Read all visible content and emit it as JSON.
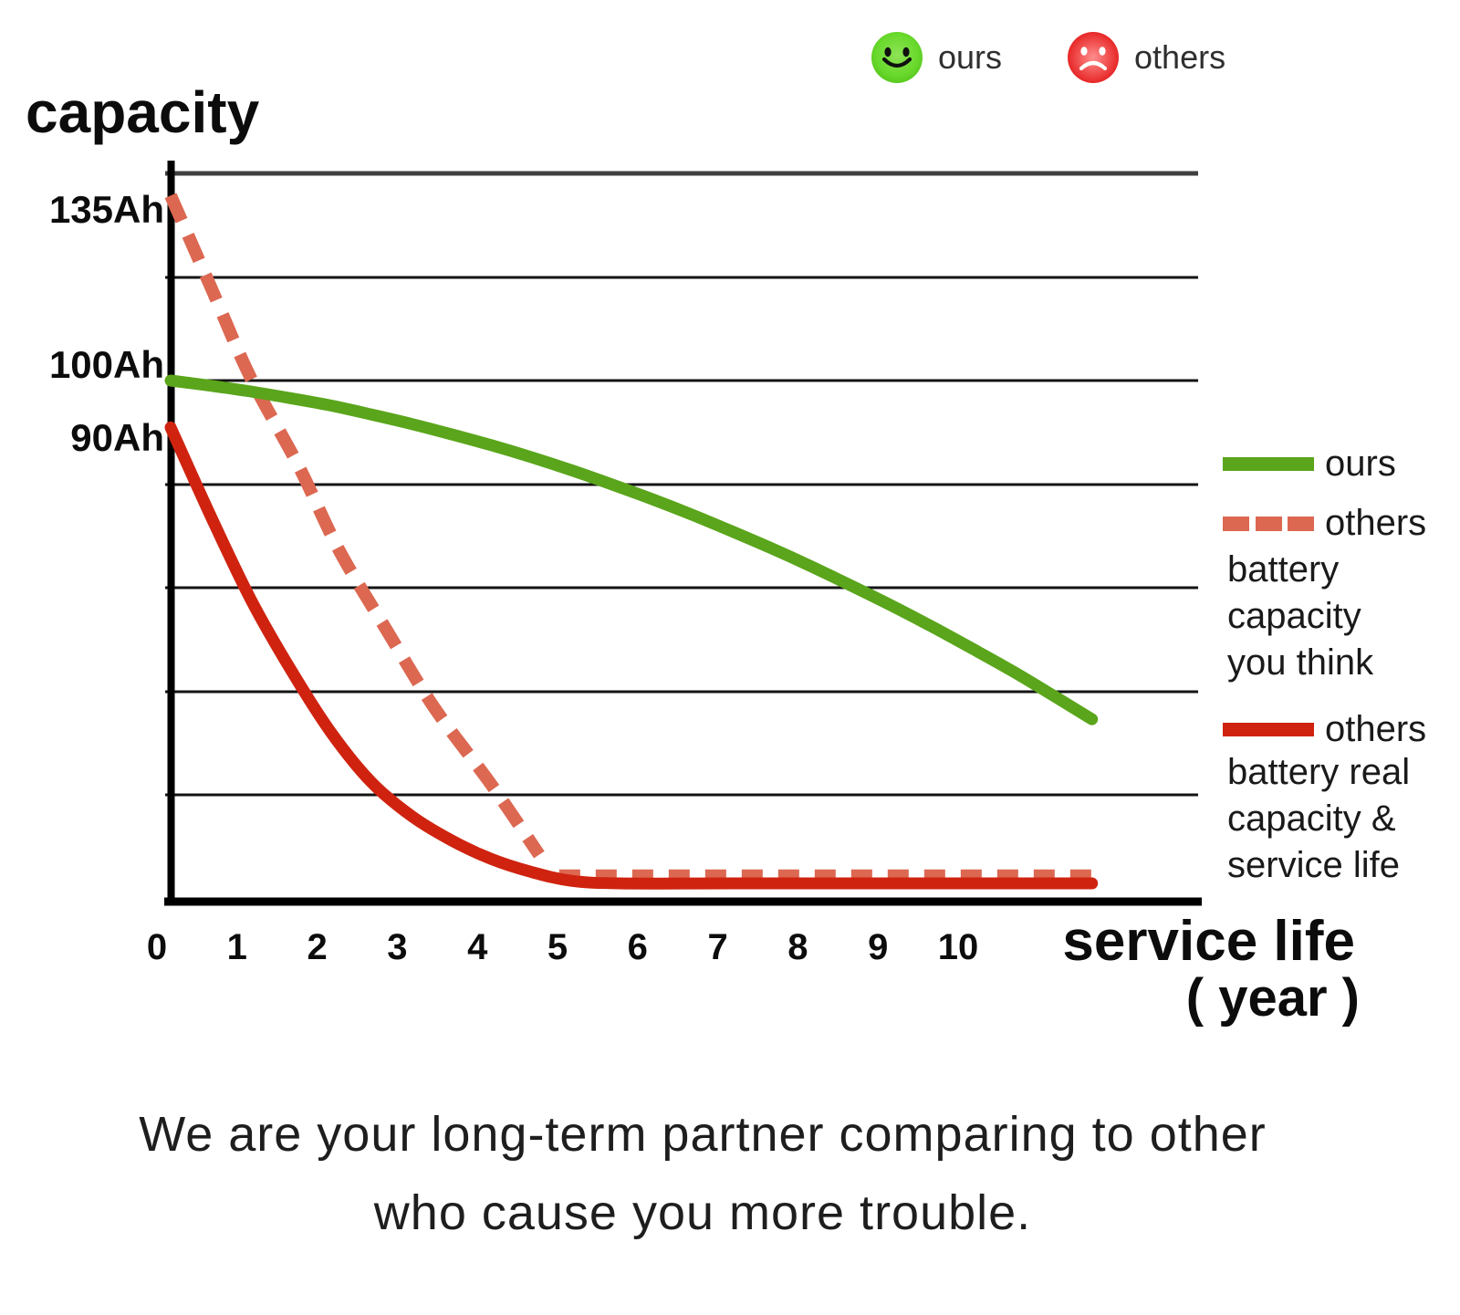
{
  "title": "capacity",
  "top_legend": [
    {
      "icon": "happy-face",
      "label": "ours"
    },
    {
      "icon": "sad-face",
      "label": "others"
    }
  ],
  "y_axis": {
    "labels": [
      "135Ah",
      "100Ah",
      "90Ah"
    ]
  },
  "x_axis": {
    "ticks": [
      "0",
      "1",
      "2",
      "3",
      "4",
      "5",
      "6",
      "7",
      "8",
      "9",
      "10"
    ],
    "title_line1": "service life",
    "title_line2": "( year )"
  },
  "side_legend": [
    {
      "swatch": "green-solid",
      "label": "ours",
      "sublines": []
    },
    {
      "swatch": "salmon-dashed",
      "label": "others",
      "sublines": [
        "battery",
        "capacity",
        "you think"
      ]
    },
    {
      "swatch": "red-solid",
      "label": "others",
      "sublines": [
        "battery real",
        "capacity &",
        "service life"
      ]
    }
  ],
  "caption": {
    "line1": "We are your long-term partner comparing to other",
    "line2": "who cause you more trouble."
  },
  "colors": {
    "ours_green": "#5aa51b",
    "others_salmon": "#dc6852",
    "others_red": "#cf2310",
    "grid": "#141414",
    "grid_top": "#3f3f3f",
    "axis": "#000000"
  },
  "chart_data": {
    "type": "line",
    "title": "capacity",
    "xlabel": "service life ( year )",
    "ylabel": "capacity",
    "x_ticks": [
      0,
      1,
      2,
      3,
      4,
      5,
      6,
      7,
      8,
      9,
      10
    ],
    "y_tick_values": [
      135,
      100,
      90
    ],
    "y_unit": "Ah",
    "grid": "horizontal",
    "legend_position": "right",
    "series": [
      {
        "name": "ours",
        "style": "solid",
        "color_key": "ours_green",
        "points": [
          [
            0,
            100
          ],
          [
            0.5,
            99
          ],
          [
            1,
            97.9
          ],
          [
            1.5,
            96.6
          ],
          [
            2,
            95.2
          ],
          [
            2.5,
            93.5
          ],
          [
            3,
            91.7
          ],
          [
            3.5,
            89.7
          ],
          [
            4,
            87.6
          ],
          [
            4.5,
            85.3
          ],
          [
            5,
            82.8
          ],
          [
            5.5,
            80.1
          ],
          [
            6,
            77.3
          ],
          [
            6.5,
            74.3
          ],
          [
            7,
            71.1
          ],
          [
            7.5,
            67.8
          ],
          [
            8,
            64.3
          ],
          [
            8.5,
            60.6
          ],
          [
            9,
            56.8
          ],
          [
            9.5,
            52.8
          ],
          [
            10,
            48.6
          ],
          [
            10.5,
            44.3
          ],
          [
            11,
            39.7
          ],
          [
            11.5,
            35
          ]
        ]
      },
      {
        "name": "others battery capacity you think",
        "style": "dashed",
        "color_key": "others_salmon",
        "points": [
          [
            0,
            135.5
          ],
          [
            0.5,
            118
          ],
          [
            1,
            100.5
          ],
          [
            1.6,
            83.5
          ],
          [
            2.1,
            67.5
          ],
          [
            2.7,
            52
          ],
          [
            3.3,
            37
          ],
          [
            4,
            22.5
          ],
          [
            4.6,
            9
          ]
        ],
        "flat_points": [
          [
            4.85,
            5.3
          ],
          [
            11.65,
            5.3
          ]
        ]
      },
      {
        "name": "others battery real capacity & service life",
        "style": "solid",
        "color_key": "others_red",
        "points": [
          [
            0,
            91
          ],
          [
            0.5,
            74
          ],
          [
            1,
            58
          ],
          [
            1.5,
            44.5
          ],
          [
            2,
            32.5
          ],
          [
            2.5,
            23
          ],
          [
            3,
            16.5
          ],
          [
            3.5,
            11.8
          ],
          [
            4,
            8.2
          ],
          [
            4.5,
            5.7
          ],
          [
            5,
            4
          ],
          [
            5.6,
            3.5
          ],
          [
            7,
            3.5
          ],
          [
            9,
            3.5
          ],
          [
            11.5,
            3.5
          ]
        ]
      }
    ]
  }
}
